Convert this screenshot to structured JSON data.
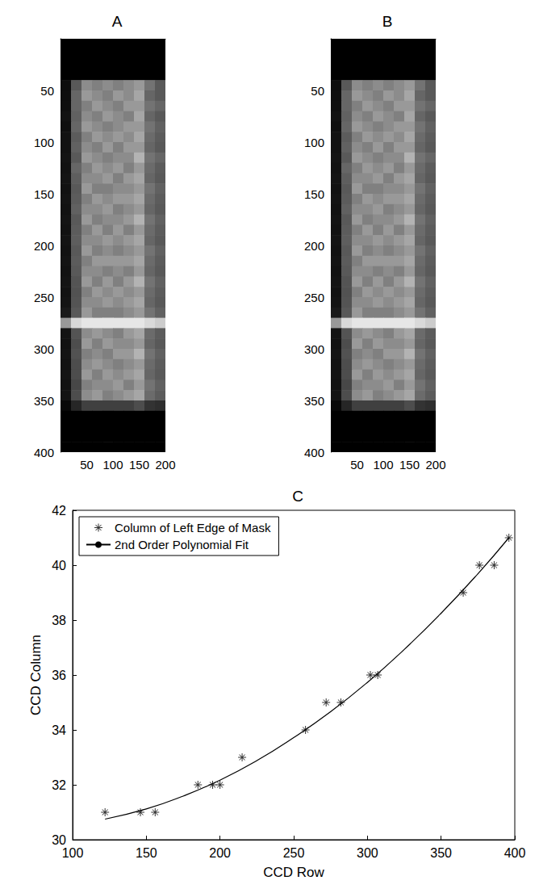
{
  "chart_data": [
    {
      "type": "heatmap",
      "title": "A",
      "xlim": [
        0,
        200
      ],
      "xticks": [
        50,
        100,
        150,
        200
      ],
      "ylim": [
        400,
        0
      ],
      "yticks": [
        50,
        100,
        150,
        200,
        250,
        300,
        350,
        400
      ],
      "x_edges": [
        0,
        20,
        40,
        60,
        80,
        100,
        120,
        140,
        160,
        180,
        200
      ],
      "y_edges": [
        0,
        10,
        20,
        30,
        40,
        50,
        60,
        70,
        80,
        90,
        100,
        110,
        120,
        130,
        140,
        150,
        160,
        170,
        180,
        190,
        200,
        210,
        220,
        230,
        240,
        250,
        260,
        270,
        280,
        290,
        300,
        310,
        320,
        330,
        340,
        350,
        360,
        370,
        380,
        390,
        400
      ],
      "color_range": [
        0,
        1
      ],
      "cells": [
        [
          0,
          0,
          0,
          0,
          0,
          0,
          0,
          0,
          0,
          0
        ],
        [
          0,
          0,
          0,
          0,
          0,
          0,
          0,
          0,
          0,
          0
        ],
        [
          0,
          0,
          0,
          0,
          0,
          0,
          0,
          0,
          0,
          0
        ],
        [
          0,
          0,
          0,
          0,
          0,
          0,
          0,
          0,
          0,
          0
        ],
        [
          0.05,
          0.35,
          0.55,
          0.5,
          0.55,
          0.5,
          0.55,
          0.6,
          0.45,
          0.35
        ],
        [
          0.06,
          0.4,
          0.6,
          0.55,
          0.5,
          0.6,
          0.55,
          0.65,
          0.4,
          0.35
        ],
        [
          0.06,
          0.4,
          0.5,
          0.6,
          0.55,
          0.5,
          0.6,
          0.6,
          0.45,
          0.4
        ],
        [
          0.07,
          0.38,
          0.55,
          0.5,
          0.6,
          0.55,
          0.5,
          0.65,
          0.4,
          0.35
        ],
        [
          0.06,
          0.4,
          0.6,
          0.55,
          0.5,
          0.55,
          0.6,
          0.6,
          0.45,
          0.38
        ],
        [
          0.07,
          0.36,
          0.5,
          0.6,
          0.55,
          0.6,
          0.55,
          0.65,
          0.42,
          0.36
        ],
        [
          0.07,
          0.38,
          0.55,
          0.5,
          0.6,
          0.5,
          0.6,
          0.6,
          0.4,
          0.35
        ],
        [
          0.08,
          0.35,
          0.6,
          0.55,
          0.5,
          0.55,
          0.55,
          0.7,
          0.45,
          0.4
        ],
        [
          0.07,
          0.4,
          0.5,
          0.6,
          0.55,
          0.6,
          0.5,
          0.6,
          0.42,
          0.36
        ],
        [
          0.08,
          0.37,
          0.55,
          0.55,
          0.6,
          0.5,
          0.6,
          0.65,
          0.4,
          0.35
        ],
        [
          0.07,
          0.35,
          0.6,
          0.5,
          0.5,
          0.55,
          0.55,
          0.6,
          0.45,
          0.38
        ],
        [
          0.08,
          0.36,
          0.5,
          0.6,
          0.55,
          0.6,
          0.6,
          0.65,
          0.42,
          0.36
        ],
        [
          0.07,
          0.38,
          0.55,
          0.55,
          0.6,
          0.5,
          0.55,
          0.6,
          0.4,
          0.35
        ],
        [
          0.08,
          0.35,
          0.6,
          0.5,
          0.55,
          0.55,
          0.6,
          0.7,
          0.45,
          0.38
        ],
        [
          0.07,
          0.36,
          0.5,
          0.6,
          0.5,
          0.6,
          0.5,
          0.6,
          0.42,
          0.36
        ],
        [
          0.08,
          0.37,
          0.55,
          0.55,
          0.6,
          0.55,
          0.6,
          0.65,
          0.4,
          0.35
        ],
        [
          0.07,
          0.35,
          0.6,
          0.5,
          0.55,
          0.5,
          0.55,
          0.6,
          0.45,
          0.38
        ],
        [
          0.08,
          0.36,
          0.5,
          0.6,
          0.6,
          0.6,
          0.6,
          0.65,
          0.42,
          0.36
        ],
        [
          0.07,
          0.35,
          0.55,
          0.55,
          0.5,
          0.55,
          0.5,
          0.6,
          0.4,
          0.35
        ],
        [
          0.08,
          0.33,
          0.6,
          0.5,
          0.6,
          0.5,
          0.6,
          0.7,
          0.45,
          0.38
        ],
        [
          0.07,
          0.32,
          0.5,
          0.6,
          0.55,
          0.6,
          0.55,
          0.6,
          0.42,
          0.36
        ],
        [
          0.08,
          0.33,
          0.55,
          0.55,
          0.6,
          0.55,
          0.6,
          0.65,
          0.4,
          0.35
        ],
        [
          0.1,
          0.35,
          0.6,
          0.5,
          0.5,
          0.5,
          0.55,
          0.6,
          0.45,
          0.38
        ],
        [
          0.6,
          0.85,
          0.9,
          0.9,
          0.9,
          0.9,
          0.9,
          0.9,
          0.85,
          0.8
        ],
        [
          0.08,
          0.33,
          0.55,
          0.6,
          0.55,
          0.5,
          0.6,
          0.65,
          0.42,
          0.36
        ],
        [
          0.07,
          0.3,
          0.6,
          0.5,
          0.6,
          0.55,
          0.55,
          0.6,
          0.4,
          0.35
        ],
        [
          0.08,
          0.32,
          0.5,
          0.55,
          0.5,
          0.6,
          0.6,
          0.7,
          0.45,
          0.38
        ],
        [
          0.07,
          0.3,
          0.55,
          0.6,
          0.55,
          0.5,
          0.55,
          0.6,
          0.42,
          0.36
        ],
        [
          0.08,
          0.3,
          0.6,
          0.5,
          0.6,
          0.55,
          0.6,
          0.65,
          0.4,
          0.35
        ],
        [
          0.07,
          0.28,
          0.5,
          0.55,
          0.55,
          0.6,
          0.5,
          0.6,
          0.45,
          0.38
        ],
        [
          0.08,
          0.3,
          0.55,
          0.6,
          0.5,
          0.55,
          0.6,
          0.65,
          0.42,
          0.36
        ],
        [
          0.03,
          0.15,
          0.25,
          0.25,
          0.25,
          0.25,
          0.25,
          0.3,
          0.2,
          0.18
        ],
        [
          0,
          0,
          0,
          0,
          0,
          0,
          0,
          0,
          0,
          0
        ],
        [
          0,
          0,
          0,
          0,
          0,
          0,
          0,
          0,
          0,
          0
        ],
        [
          0,
          0,
          0,
          0,
          0,
          0,
          0,
          0,
          0,
          0
        ],
        [
          0,
          0,
          0,
          0,
          0,
          0,
          0,
          0,
          0,
          0
        ]
      ]
    },
    {
      "type": "heatmap",
      "title": "B",
      "xlim": [
        0,
        200
      ],
      "xticks": [
        50,
        100,
        150,
        200
      ],
      "ylim": [
        400,
        0
      ],
      "yticks": [
        50,
        100,
        150,
        200,
        250,
        300,
        350,
        400
      ],
      "x_edges": [
        0,
        20,
        40,
        60,
        80,
        100,
        120,
        140,
        160,
        180,
        200
      ],
      "y_edges": [
        0,
        10,
        20,
        30,
        40,
        50,
        60,
        70,
        80,
        90,
        100,
        110,
        120,
        130,
        140,
        150,
        160,
        170,
        180,
        190,
        200,
        210,
        220,
        230,
        240,
        250,
        260,
        270,
        280,
        290,
        300,
        310,
        320,
        330,
        340,
        350,
        360,
        370,
        380,
        390,
        400
      ],
      "color_range": [
        0,
        1
      ],
      "cells": [
        [
          0,
          0,
          0,
          0,
          0,
          0,
          0,
          0,
          0,
          0
        ],
        [
          0,
          0,
          0,
          0,
          0,
          0,
          0,
          0,
          0,
          0
        ],
        [
          0,
          0,
          0,
          0,
          0,
          0,
          0,
          0,
          0,
          0
        ],
        [
          0,
          0,
          0,
          0,
          0,
          0,
          0,
          0,
          0,
          0
        ],
        [
          0.05,
          0.35,
          0.55,
          0.5,
          0.55,
          0.5,
          0.55,
          0.6,
          0.45,
          0.35
        ],
        [
          0.06,
          0.4,
          0.6,
          0.55,
          0.5,
          0.6,
          0.55,
          0.65,
          0.4,
          0.35
        ],
        [
          0.06,
          0.4,
          0.5,
          0.6,
          0.55,
          0.5,
          0.6,
          0.6,
          0.45,
          0.4
        ],
        [
          0.07,
          0.38,
          0.55,
          0.5,
          0.6,
          0.55,
          0.5,
          0.65,
          0.4,
          0.35
        ],
        [
          0.06,
          0.4,
          0.6,
          0.55,
          0.5,
          0.55,
          0.6,
          0.6,
          0.45,
          0.38
        ],
        [
          0.07,
          0.36,
          0.5,
          0.6,
          0.55,
          0.6,
          0.55,
          0.65,
          0.42,
          0.36
        ],
        [
          0.07,
          0.38,
          0.55,
          0.5,
          0.6,
          0.5,
          0.6,
          0.6,
          0.4,
          0.35
        ],
        [
          0.08,
          0.35,
          0.6,
          0.55,
          0.5,
          0.55,
          0.55,
          0.7,
          0.45,
          0.4
        ],
        [
          0.07,
          0.4,
          0.5,
          0.6,
          0.55,
          0.6,
          0.5,
          0.6,
          0.42,
          0.36
        ],
        [
          0.08,
          0.37,
          0.55,
          0.55,
          0.6,
          0.5,
          0.6,
          0.65,
          0.4,
          0.35
        ],
        [
          0.07,
          0.35,
          0.6,
          0.5,
          0.5,
          0.55,
          0.55,
          0.6,
          0.45,
          0.38
        ],
        [
          0.08,
          0.36,
          0.5,
          0.6,
          0.55,
          0.6,
          0.6,
          0.65,
          0.42,
          0.36
        ],
        [
          0.07,
          0.38,
          0.55,
          0.55,
          0.6,
          0.5,
          0.55,
          0.6,
          0.4,
          0.35
        ],
        [
          0.08,
          0.35,
          0.6,
          0.5,
          0.55,
          0.55,
          0.6,
          0.7,
          0.45,
          0.38
        ],
        [
          0.07,
          0.36,
          0.5,
          0.6,
          0.5,
          0.6,
          0.5,
          0.6,
          0.42,
          0.36
        ],
        [
          0.08,
          0.37,
          0.55,
          0.55,
          0.6,
          0.55,
          0.6,
          0.65,
          0.4,
          0.35
        ],
        [
          0.07,
          0.35,
          0.6,
          0.5,
          0.55,
          0.5,
          0.55,
          0.6,
          0.45,
          0.38
        ],
        [
          0.08,
          0.36,
          0.5,
          0.6,
          0.6,
          0.6,
          0.6,
          0.65,
          0.42,
          0.36
        ],
        [
          0.07,
          0.35,
          0.55,
          0.55,
          0.5,
          0.55,
          0.5,
          0.6,
          0.4,
          0.35
        ],
        [
          0.08,
          0.33,
          0.6,
          0.5,
          0.6,
          0.5,
          0.6,
          0.7,
          0.45,
          0.38
        ],
        [
          0.07,
          0.32,
          0.5,
          0.6,
          0.55,
          0.6,
          0.55,
          0.6,
          0.42,
          0.36
        ],
        [
          0.08,
          0.33,
          0.55,
          0.55,
          0.6,
          0.55,
          0.6,
          0.65,
          0.4,
          0.35
        ],
        [
          0.1,
          0.35,
          0.6,
          0.5,
          0.5,
          0.5,
          0.55,
          0.6,
          0.45,
          0.38
        ],
        [
          0.6,
          0.85,
          0.9,
          0.9,
          0.9,
          0.9,
          0.9,
          0.9,
          0.85,
          0.8
        ],
        [
          0.08,
          0.33,
          0.55,
          0.6,
          0.55,
          0.5,
          0.6,
          0.65,
          0.42,
          0.36
        ],
        [
          0.07,
          0.3,
          0.6,
          0.5,
          0.6,
          0.55,
          0.55,
          0.6,
          0.4,
          0.35
        ],
        [
          0.08,
          0.32,
          0.5,
          0.55,
          0.5,
          0.6,
          0.6,
          0.7,
          0.45,
          0.38
        ],
        [
          0.07,
          0.3,
          0.55,
          0.6,
          0.55,
          0.5,
          0.55,
          0.6,
          0.42,
          0.36
        ],
        [
          0.08,
          0.3,
          0.6,
          0.5,
          0.6,
          0.55,
          0.6,
          0.65,
          0.4,
          0.35
        ],
        [
          0.07,
          0.28,
          0.5,
          0.55,
          0.55,
          0.6,
          0.5,
          0.6,
          0.45,
          0.38
        ],
        [
          0.08,
          0.3,
          0.55,
          0.6,
          0.5,
          0.55,
          0.6,
          0.65,
          0.42,
          0.36
        ],
        [
          0.03,
          0.15,
          0.25,
          0.25,
          0.25,
          0.25,
          0.25,
          0.3,
          0.2,
          0.18
        ],
        [
          0,
          0,
          0,
          0,
          0,
          0,
          0,
          0,
          0,
          0
        ],
        [
          0,
          0,
          0,
          0,
          0,
          0,
          0,
          0,
          0,
          0
        ],
        [
          0,
          0,
          0,
          0,
          0,
          0,
          0,
          0,
          0,
          0
        ],
        [
          0,
          0,
          0,
          0,
          0,
          0,
          0,
          0,
          0,
          0
        ]
      ]
    },
    {
      "type": "scatter",
      "title": "C",
      "x_label": "CCD Row",
      "y_label": "CCD Column",
      "xlim": [
        100,
        400
      ],
      "xticks": [
        100,
        150,
        200,
        250,
        300,
        350,
        400
      ],
      "ylim": [
        30,
        42
      ],
      "yticks": [
        30,
        32,
        34,
        36,
        38,
        40,
        42
      ],
      "grid": false,
      "legend": "upper left",
      "series": [
        {
          "name": "Column of Left Edge of Mask",
          "type": "scatter",
          "marker": "asterisk",
          "color": "#000000",
          "x": [
            122,
            146,
            156,
            185,
            195,
            200,
            215,
            258,
            272,
            282,
            302,
            307,
            365,
            376,
            386,
            396
          ],
          "values": [
            31,
            31,
            31,
            32,
            32,
            32,
            33,
            34,
            35,
            35,
            36,
            36,
            39,
            40,
            40,
            41
          ]
        },
        {
          "name": "2nd Order Polynomial Fit",
          "type": "line",
          "line_style": "solid",
          "color": "#000000",
          "x": [
            122,
            150,
            175,
            200,
            225,
            250,
            275,
            300,
            325,
            350,
            375,
            396
          ],
          "values": [
            30.75,
            31.12,
            31.59,
            32.17,
            32.88,
            33.72,
            34.66,
            35.73,
            36.93,
            38.25,
            39.69,
            41.0
          ]
        }
      ]
    }
  ]
}
